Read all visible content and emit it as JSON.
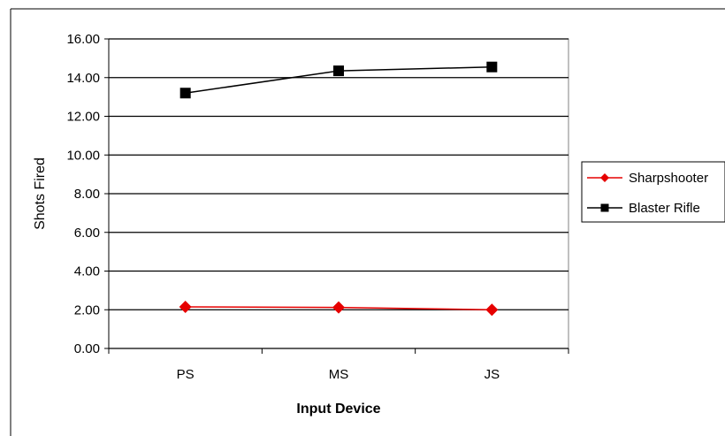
{
  "chart_data": {
    "type": "line",
    "title": "",
    "xlabel": "Input Device",
    "ylabel": "Shots Fired",
    "categories": [
      "PS",
      "MS",
      "JS"
    ],
    "ylim": [
      0,
      16
    ],
    "y_ticks": [
      "0.00",
      "2.00",
      "4.00",
      "6.00",
      "8.00",
      "10.00",
      "12.00",
      "14.00",
      "16.00"
    ],
    "grid": "horizontal",
    "legend_position": "right",
    "series": [
      {
        "name": "Sharpshooter",
        "values": [
          2.15,
          2.12,
          2.0
        ],
        "color": "#e60000",
        "marker": "diamond"
      },
      {
        "name": "Blaster Rifle",
        "values": [
          13.2,
          14.35,
          14.55
        ],
        "color": "#000000",
        "marker": "square"
      }
    ]
  }
}
